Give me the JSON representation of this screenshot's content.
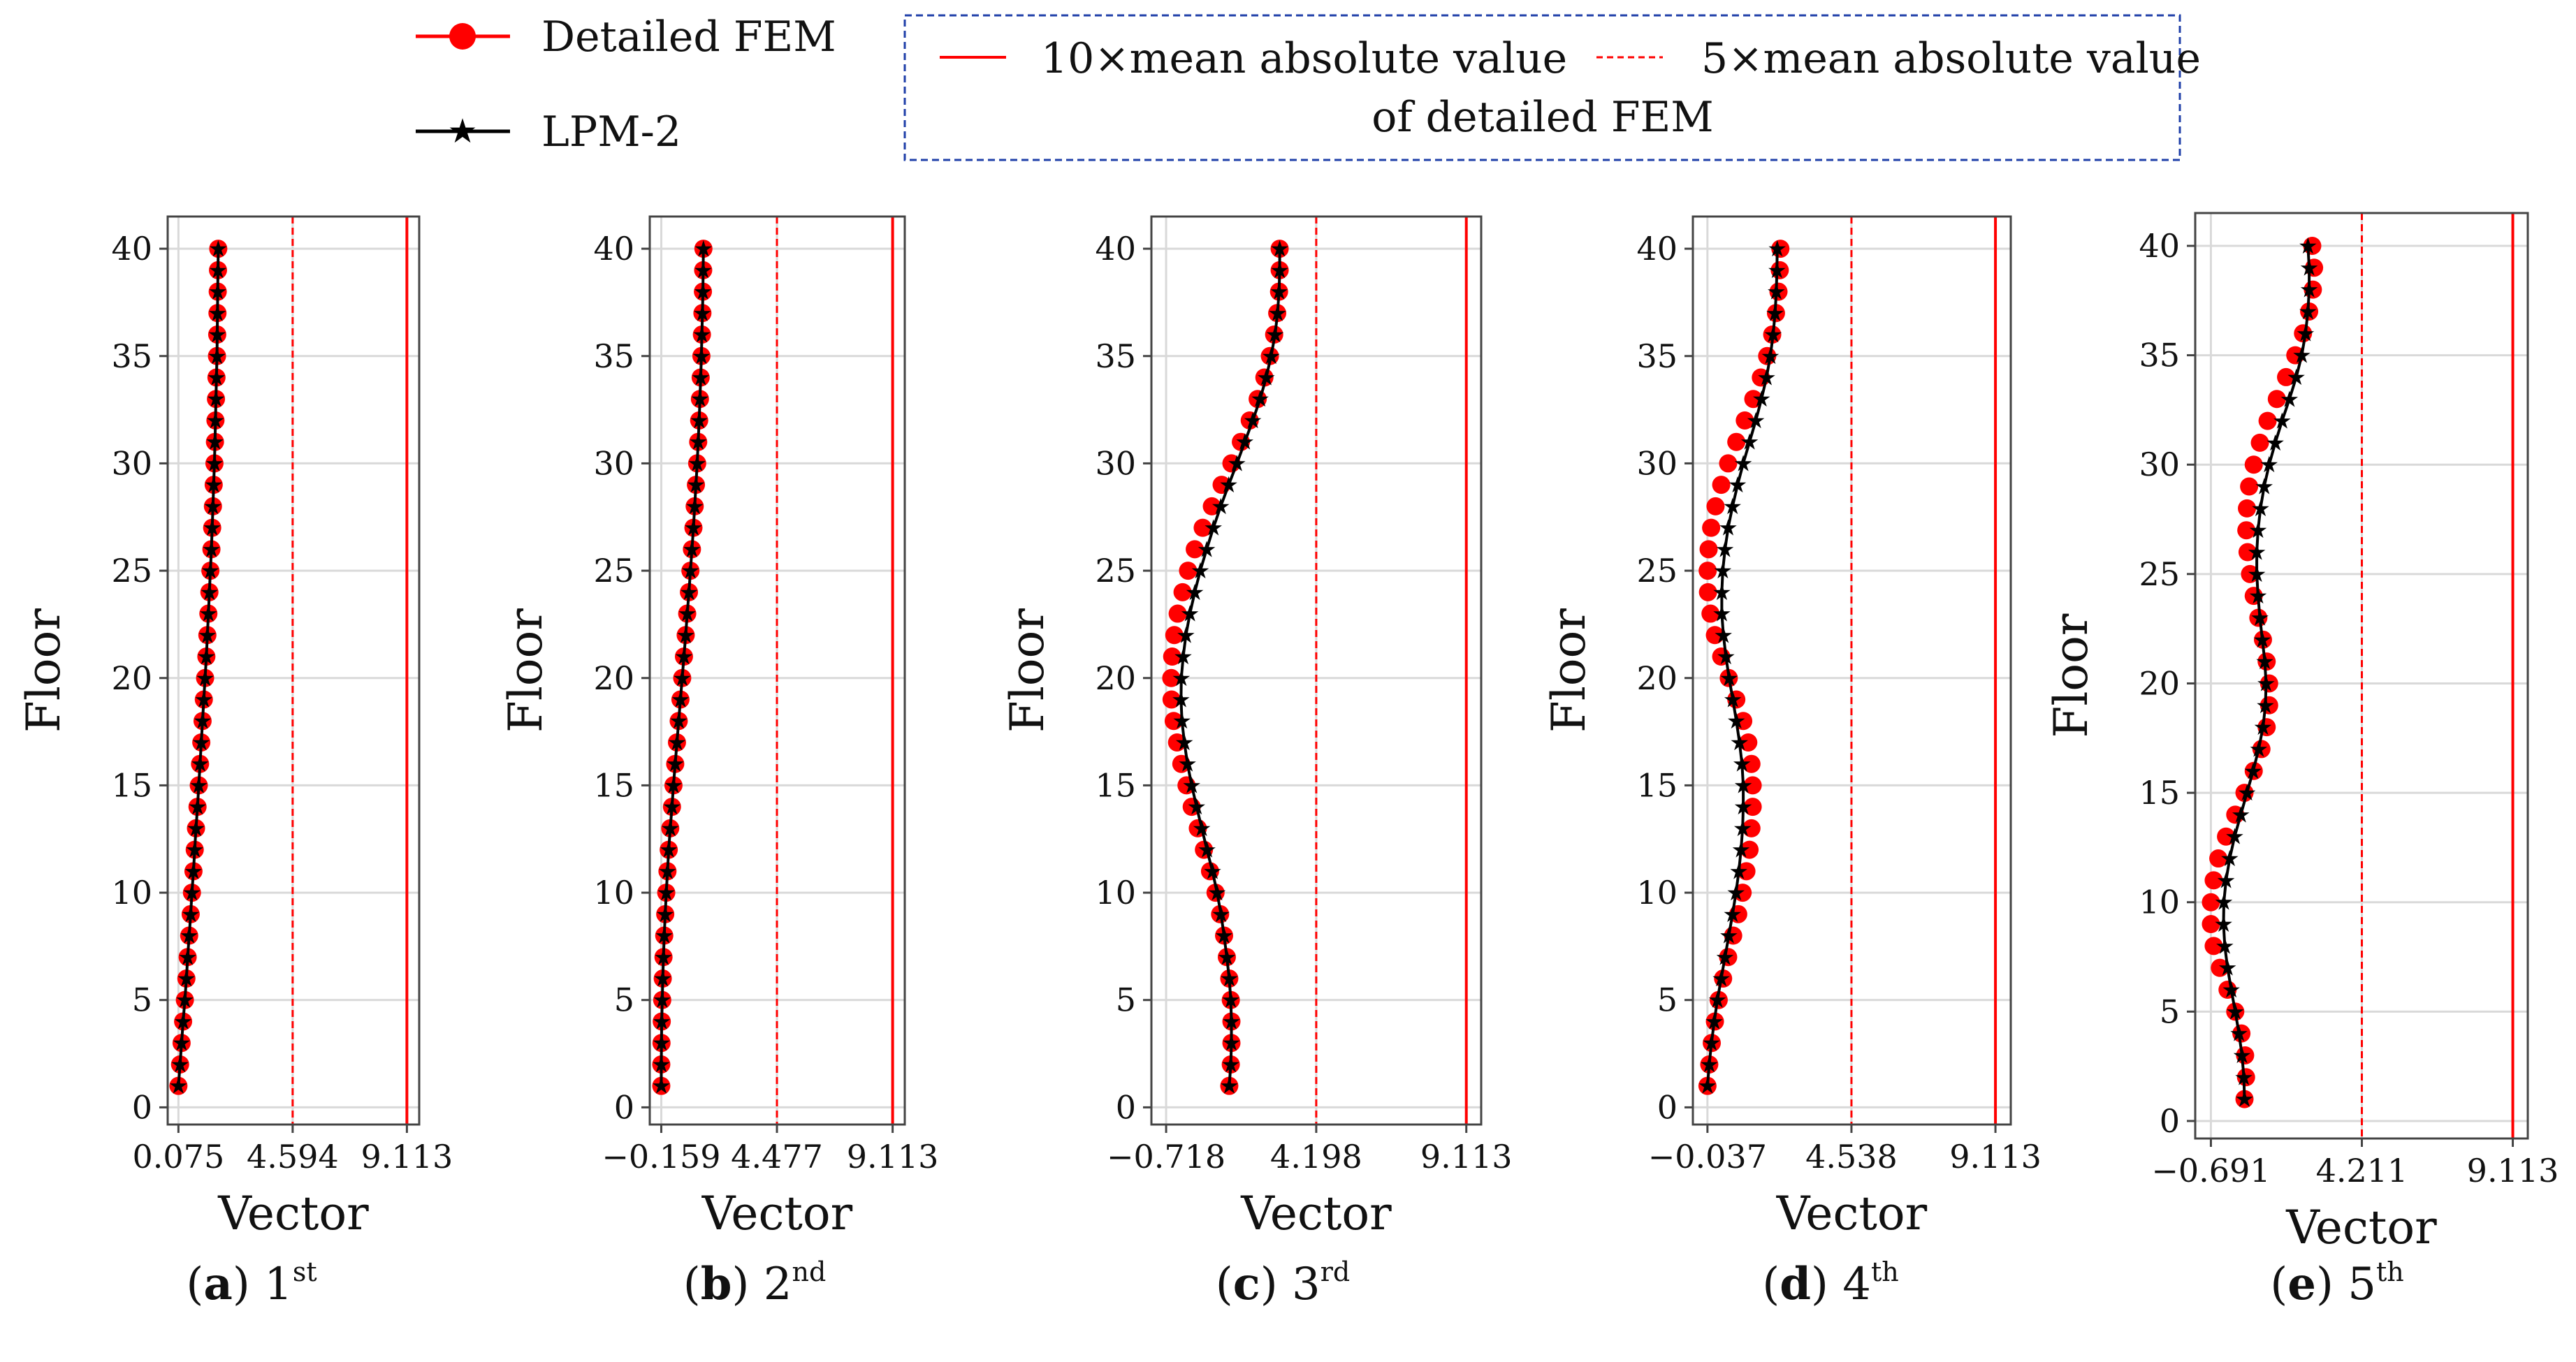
{
  "legend": {
    "fem_label": "Detailed FEM",
    "lpm_label": "LPM-2",
    "line10_label": "10×mean absolute value",
    "line5_label": "5×mean absolute value",
    "line_suffix": "of detailed FEM"
  },
  "colors": {
    "fem": "#ff0000",
    "lpm": "#000000",
    "box": "#1f3fa8",
    "grid": "#d9d9d9"
  },
  "chart_data": [
    {
      "type": "line",
      "caption": {
        "letter": "a",
        "ordinal": "1",
        "suffix": "st"
      },
      "xlabel": "Vector",
      "ylabel": "Floor",
      "xlim": [
        -0.35,
        9.6
      ],
      "ylim": [
        -0.8,
        41.5
      ],
      "xticks": [
        0.075,
        4.594,
        9.113
      ],
      "xtick_labels": [
        "0.075",
        "4.594",
        "9.113"
      ],
      "yticks": [
        0,
        5,
        10,
        15,
        20,
        25,
        30,
        35,
        40
      ],
      "vline_10x": 9.113,
      "vline_5x": 4.594,
      "floors": [
        1,
        2,
        3,
        4,
        5,
        6,
        7,
        8,
        9,
        10,
        11,
        12,
        13,
        14,
        15,
        16,
        17,
        18,
        19,
        20,
        21,
        22,
        23,
        24,
        25,
        26,
        27,
        28,
        29,
        30,
        31,
        32,
        33,
        34,
        35,
        36,
        37,
        38,
        39,
        40
      ],
      "series": [
        {
          "name": "Detailed FEM",
          "values": [
            0.075,
            0.14,
            0.2,
            0.26,
            0.33,
            0.39,
            0.44,
            0.5,
            0.56,
            0.61,
            0.67,
            0.72,
            0.77,
            0.83,
            0.88,
            0.93,
            0.98,
            1.03,
            1.08,
            1.13,
            1.18,
            1.22,
            1.26,
            1.3,
            1.34,
            1.38,
            1.41,
            1.44,
            1.47,
            1.5,
            1.52,
            1.54,
            1.56,
            1.58,
            1.6,
            1.61,
            1.62,
            1.63,
            1.64,
            1.65
          ]
        },
        {
          "name": "LPM-2",
          "values": [
            0.075,
            0.14,
            0.2,
            0.26,
            0.33,
            0.39,
            0.44,
            0.5,
            0.56,
            0.61,
            0.67,
            0.72,
            0.77,
            0.83,
            0.88,
            0.93,
            0.98,
            1.03,
            1.08,
            1.13,
            1.18,
            1.22,
            1.26,
            1.3,
            1.34,
            1.38,
            1.41,
            1.44,
            1.47,
            1.5,
            1.52,
            1.54,
            1.56,
            1.58,
            1.6,
            1.61,
            1.62,
            1.63,
            1.64,
            1.65
          ]
        }
      ]
    },
    {
      "type": "line",
      "caption": {
        "letter": "b",
        "ordinal": "2",
        "suffix": "nd"
      },
      "xlabel": "Vector",
      "ylabel": "Floor",
      "xlim": [
        -0.62,
        9.6
      ],
      "ylim": [
        -0.8,
        41.5
      ],
      "xticks": [
        -0.159,
        4.477,
        9.113
      ],
      "xtick_labels": [
        "−0.159",
        "4.477",
        "9.113"
      ],
      "yticks": [
        0,
        5,
        10,
        15,
        20,
        25,
        30,
        35,
        40
      ],
      "vline_10x": 9.113,
      "vline_5x": 4.477,
      "floors": [
        1,
        2,
        3,
        4,
        5,
        6,
        7,
        8,
        9,
        10,
        11,
        12,
        13,
        14,
        15,
        16,
        17,
        18,
        19,
        20,
        21,
        22,
        23,
        24,
        25,
        26,
        27,
        28,
        29,
        30,
        31,
        32,
        33,
        34,
        35,
        36,
        37,
        38,
        39,
        40
      ],
      "series": [
        {
          "name": "Detailed FEM",
          "values": [
            -0.159,
            -0.159,
            -0.15,
            -0.14,
            -0.12,
            -0.1,
            -0.07,
            -0.04,
            0.0,
            0.04,
            0.09,
            0.14,
            0.2,
            0.27,
            0.33,
            0.4,
            0.47,
            0.54,
            0.61,
            0.68,
            0.75,
            0.82,
            0.88,
            0.95,
            1.01,
            1.07,
            1.13,
            1.18,
            1.23,
            1.28,
            1.32,
            1.36,
            1.39,
            1.42,
            1.45,
            1.47,
            1.49,
            1.51,
            1.52,
            1.53
          ]
        },
        {
          "name": "LPM-2",
          "values": [
            -0.159,
            -0.159,
            -0.15,
            -0.14,
            -0.12,
            -0.1,
            -0.07,
            -0.04,
            0.0,
            0.04,
            0.09,
            0.14,
            0.2,
            0.27,
            0.33,
            0.4,
            0.47,
            0.54,
            0.61,
            0.68,
            0.75,
            0.82,
            0.88,
            0.95,
            1.01,
            1.07,
            1.13,
            1.18,
            1.23,
            1.28,
            1.32,
            1.36,
            1.39,
            1.42,
            1.45,
            1.47,
            1.49,
            1.51,
            1.52,
            1.53
          ]
        }
      ]
    },
    {
      "type": "line",
      "caption": {
        "letter": "c",
        "ordinal": "3",
        "suffix": "rd"
      },
      "xlabel": "Vector",
      "ylabel": "Floor",
      "xlim": [
        -1.2,
        9.6
      ],
      "ylim": [
        -0.8,
        41.5
      ],
      "xticks": [
        -0.718,
        4.198,
        9.113
      ],
      "xtick_labels": [
        "−0.718",
        "4.198",
        "9.113"
      ],
      "yticks": [
        0,
        5,
        10,
        15,
        20,
        25,
        30,
        35,
        40
      ],
      "vline_10x": 9.113,
      "vline_5x": 4.198,
      "floors": [
        1,
        2,
        3,
        4,
        5,
        6,
        7,
        8,
        9,
        10,
        11,
        12,
        13,
        14,
        15,
        16,
        17,
        18,
        19,
        20,
        21,
        22,
        23,
        24,
        25,
        26,
        27,
        28,
        29,
        30,
        31,
        32,
        33,
        34,
        35,
        36,
        37,
        38,
        39,
        40
      ],
      "series": [
        {
          "name": "Detailed FEM",
          "values": [
            1.35,
            1.4,
            1.42,
            1.42,
            1.4,
            1.35,
            1.27,
            1.18,
            1.05,
            0.9,
            0.72,
            0.52,
            0.32,
            0.12,
            -0.05,
            -0.22,
            -0.36,
            -0.47,
            -0.54,
            -0.55,
            -0.52,
            -0.45,
            -0.34,
            -0.18,
            0.0,
            0.22,
            0.48,
            0.78,
            1.1,
            1.42,
            1.73,
            2.02,
            2.28,
            2.5,
            2.68,
            2.82,
            2.92,
            2.98,
            3.0,
            3.0
          ]
        },
        {
          "name": "LPM-2",
          "values": [
            1.35,
            1.4,
            1.42,
            1.42,
            1.4,
            1.35,
            1.27,
            1.18,
            1.08,
            0.95,
            0.8,
            0.62,
            0.45,
            0.28,
            0.12,
            -0.02,
            -0.12,
            -0.2,
            -0.23,
            -0.22,
            -0.16,
            -0.07,
            0.06,
            0.22,
            0.4,
            0.61,
            0.83,
            1.07,
            1.33,
            1.6,
            1.86,
            2.12,
            2.36,
            2.56,
            2.72,
            2.85,
            2.93,
            2.98,
            3.0,
            3.0
          ]
        }
      ]
    },
    {
      "type": "line",
      "caption": {
        "letter": "d",
        "ordinal": "4",
        "suffix": "th"
      },
      "xlabel": "Vector",
      "ylabel": "Floor",
      "xlim": [
        -0.5,
        9.6
      ],
      "ylim": [
        -0.8,
        41.5
      ],
      "xticks": [
        -0.037,
        4.538,
        9.113
      ],
      "xtick_labels": [
        "−0.037",
        "4.538",
        "9.113"
      ],
      "yticks": [
        0,
        5,
        10,
        15,
        20,
        25,
        30,
        35,
        40
      ],
      "vline_10x": 9.113,
      "vline_5x": 4.538,
      "floors": [
        1,
        2,
        3,
        4,
        5,
        6,
        7,
        8,
        9,
        10,
        11,
        12,
        13,
        14,
        15,
        16,
        17,
        18,
        19,
        20,
        21,
        22,
        23,
        24,
        25,
        26,
        27,
        28,
        29,
        30,
        31,
        32,
        33,
        34,
        35,
        36,
        37,
        38,
        39,
        40
      ],
      "series": [
        {
          "name": "Detailed FEM",
          "values": [
            -0.037,
            0.02,
            0.1,
            0.2,
            0.32,
            0.46,
            0.62,
            0.78,
            0.94,
            1.08,
            1.2,
            1.3,
            1.36,
            1.4,
            1.4,
            1.36,
            1.26,
            1.1,
            0.88,
            0.64,
            0.4,
            0.2,
            0.06,
            -0.02,
            -0.03,
            0.0,
            0.08,
            0.22,
            0.4,
            0.62,
            0.88,
            1.15,
            1.42,
            1.66,
            1.86,
            2.02,
            2.14,
            2.22,
            2.26,
            2.28
          ]
        },
        {
          "name": "LPM-2",
          "values": [
            -0.037,
            0.02,
            0.09,
            0.18,
            0.28,
            0.4,
            0.52,
            0.64,
            0.76,
            0.87,
            0.96,
            1.03,
            1.08,
            1.1,
            1.1,
            1.06,
            0.98,
            0.88,
            0.77,
            0.65,
            0.55,
            0.47,
            0.42,
            0.42,
            0.45,
            0.52,
            0.62,
            0.76,
            0.92,
            1.1,
            1.3,
            1.5,
            1.68,
            1.84,
            1.96,
            2.05,
            2.11,
            2.15,
            2.17,
            2.18
          ]
        }
      ]
    },
    {
      "type": "line",
      "caption": {
        "letter": "e",
        "ordinal": "5",
        "suffix": "th"
      },
      "xlabel": "Vector",
      "ylabel": "Floor",
      "xlim": [
        -1.2,
        9.6
      ],
      "ylim": [
        -0.8,
        41.5
      ],
      "xticks": [
        -0.691,
        4.211,
        9.113
      ],
      "xtick_labels": [
        "−0.691",
        "4.211",
        "9.113"
      ],
      "yticks": [
        0,
        5,
        10,
        15,
        20,
        25,
        30,
        35,
        40
      ],
      "vline_10x": 9.113,
      "vline_5x": 4.211,
      "floors": [
        1,
        2,
        3,
        4,
        5,
        6,
        7,
        8,
        9,
        10,
        11,
        12,
        13,
        14,
        15,
        16,
        17,
        18,
        19,
        20,
        21,
        22,
        23,
        24,
        25,
        26,
        27,
        28,
        29,
        30,
        31,
        32,
        33,
        34,
        35,
        36,
        37,
        38,
        39,
        40
      ],
      "series": [
        {
          "name": "Detailed FEM",
          "values": [
            0.4,
            0.45,
            0.42,
            0.3,
            0.1,
            -0.15,
            -0.4,
            -0.6,
            -0.69,
            -0.69,
            -0.6,
            -0.45,
            -0.2,
            0.1,
            0.4,
            0.7,
            0.95,
            1.12,
            1.2,
            1.2,
            1.12,
            1.0,
            0.85,
            0.7,
            0.58,
            0.5,
            0.46,
            0.48,
            0.55,
            0.7,
            0.9,
            1.15,
            1.45,
            1.75,
            2.05,
            2.3,
            2.5,
            2.62,
            2.66,
            2.6
          ]
        },
        {
          "name": "LPM-2",
          "values": [
            0.4,
            0.38,
            0.32,
            0.22,
            0.1,
            -0.03,
            -0.15,
            -0.24,
            -0.28,
            -0.27,
            -0.2,
            -0.08,
            0.08,
            0.28,
            0.48,
            0.68,
            0.86,
            1.0,
            1.08,
            1.1,
            1.06,
            0.98,
            0.9,
            0.84,
            0.8,
            0.8,
            0.84,
            0.92,
            1.04,
            1.2,
            1.4,
            1.62,
            1.86,
            2.08,
            2.26,
            2.38,
            2.46,
            2.5,
            2.5,
            2.46
          ]
        }
      ]
    }
  ]
}
